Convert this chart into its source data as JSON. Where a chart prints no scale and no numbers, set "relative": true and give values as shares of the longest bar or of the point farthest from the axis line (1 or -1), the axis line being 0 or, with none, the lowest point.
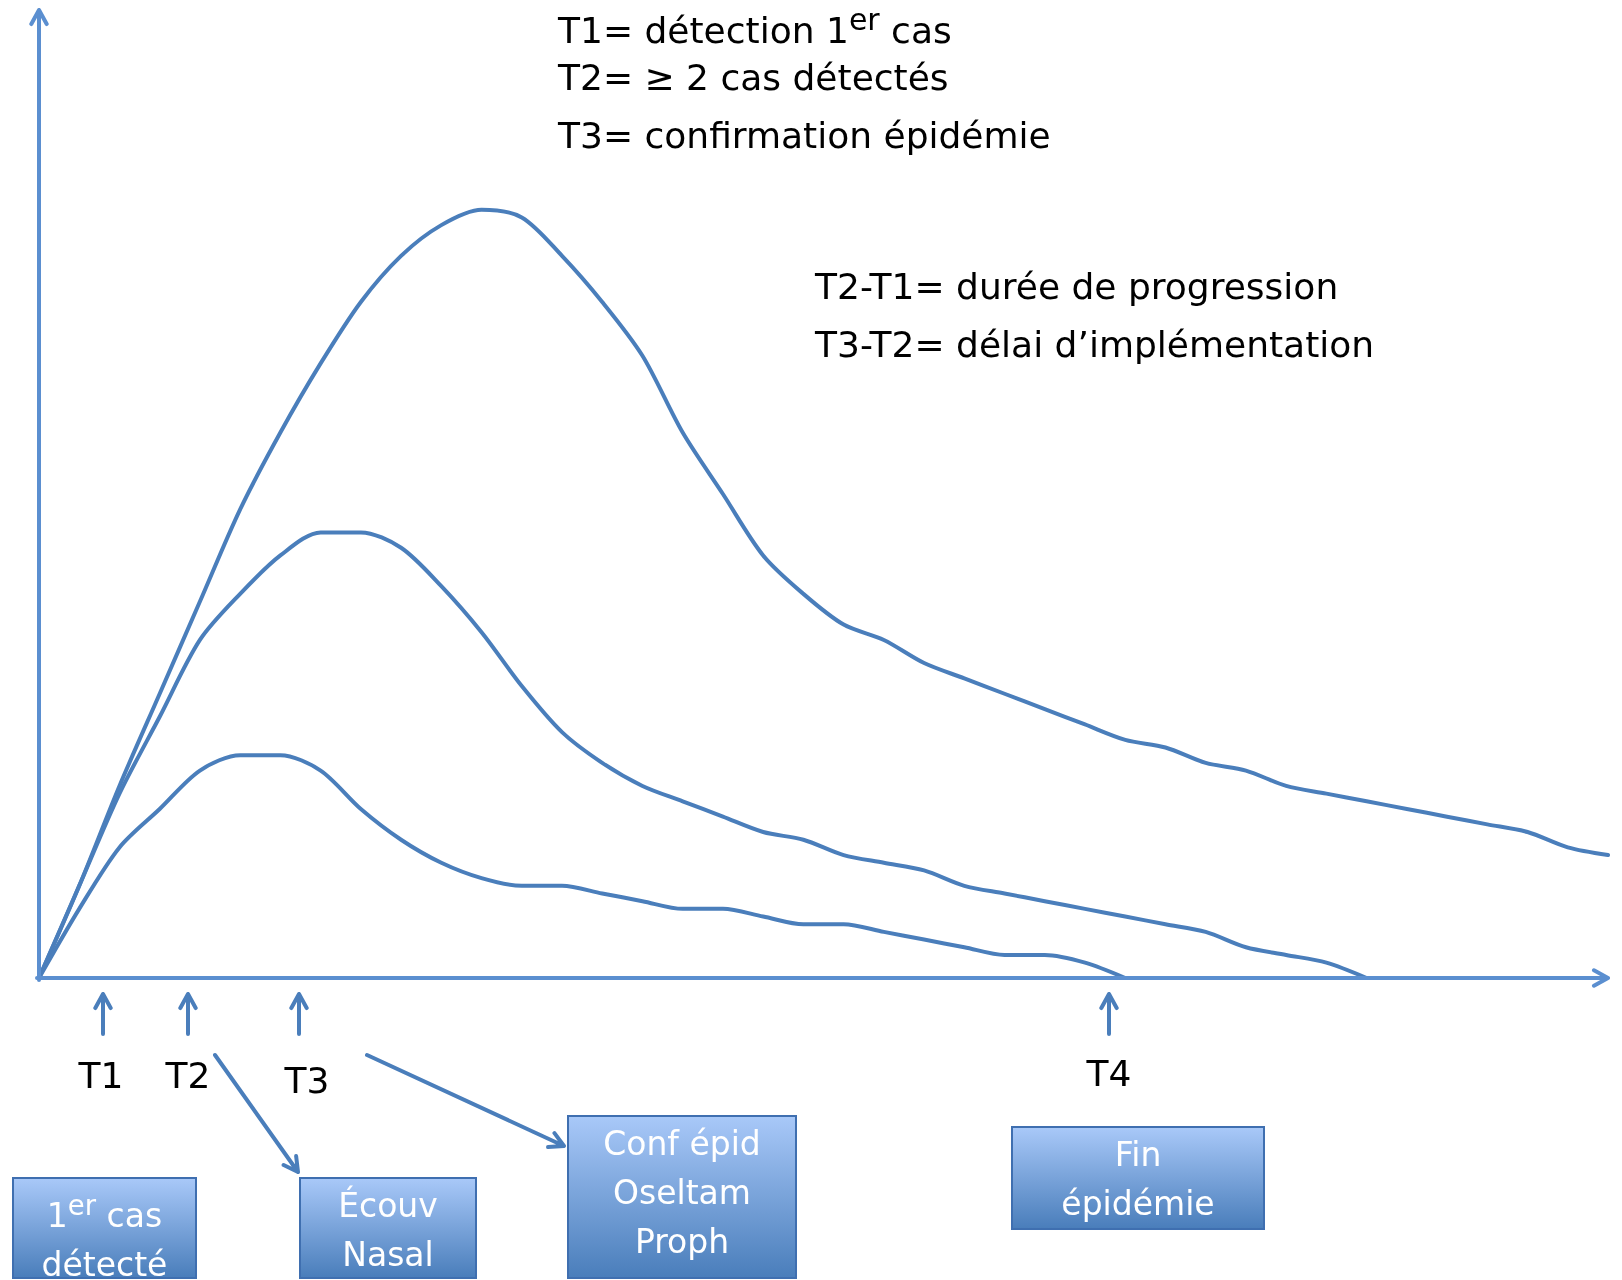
{
  "chart_data": {
    "type": "line",
    "relative": true,
    "categories": [
      null,
      null,
      null,
      null,
      null,
      null,
      null,
      null,
      null,
      null,
      null,
      null,
      null,
      null,
      null,
      null,
      null,
      null,
      null,
      null,
      null,
      null,
      null,
      null,
      null,
      null,
      null,
      null,
      null,
      null,
      null,
      null,
      null,
      null,
      null,
      null,
      null,
      null,
      null,
      null
    ],
    "series": [
      {
        "color": "#4a7ebb",
        "values": [
          0,
          0.12,
          0.25,
          0.37,
          0.49,
          0.61,
          0.71,
          0.8,
          0.88,
          0.94,
          0.98,
          1,
          0.99,
          0.94,
          0.88,
          0.81,
          0.71,
          0.63,
          0.55,
          0.5,
          0.46,
          0.44,
          0.41,
          0.39,
          0.37,
          0.35,
          0.33,
          0.31,
          0.3,
          0.28,
          0.27,
          0.25,
          0.24,
          0.23,
          0.22,
          0.21,
          0.2,
          0.19,
          0.17,
          0.16
        ]
      },
      {
        "color": "#4a7ebb",
        "values": [
          0,
          0.12,
          0.24,
          0.34,
          0.44,
          0.5,
          0.55,
          0.58,
          0.58,
          0.56,
          0.51,
          0.45,
          0.38,
          0.32,
          0.28,
          0.25,
          0.23,
          0.21,
          0.19,
          0.18,
          0.16,
          0.15,
          0.14,
          0.12,
          0.11,
          0.1,
          0.09,
          0.08,
          0.07,
          0.06,
          0.04,
          0.03,
          0.02,
          0,
          null,
          null,
          null,
          null,
          null,
          null
        ]
      },
      {
        "color": "#4a7ebb",
        "values": [
          0,
          0.09,
          0.17,
          0.22,
          0.27,
          0.29,
          0.29,
          0.27,
          0.22,
          0.18,
          0.15,
          0.13,
          0.12,
          0.12,
          0.11,
          0.1,
          0.09,
          0.09,
          0.08,
          0.07,
          0.07,
          0.06,
          0.05,
          0.04,
          0.03,
          0.03,
          0.02,
          0,
          null,
          null,
          null,
          null,
          null,
          null,
          null,
          null,
          null,
          null,
          null,
          null
        ]
      }
    ],
    "annotations": [
      "T1= détection 1$^{er}$ cas",
      "T2= ≥ 2 cas détectés",
      "T3= confirmation épidémie",
      "T2-T1= durée de progression",
      "T3-T2= délai d’implémentation",
      "T1",
      "T2",
      "T3",
      "T4",
      "1$^{er}$ cas\ndétecté",
      "Écouv\nNasal",
      "Conf épid\nOseltam\nProph",
      "Fin\népidémie"
    ]
  }
}
